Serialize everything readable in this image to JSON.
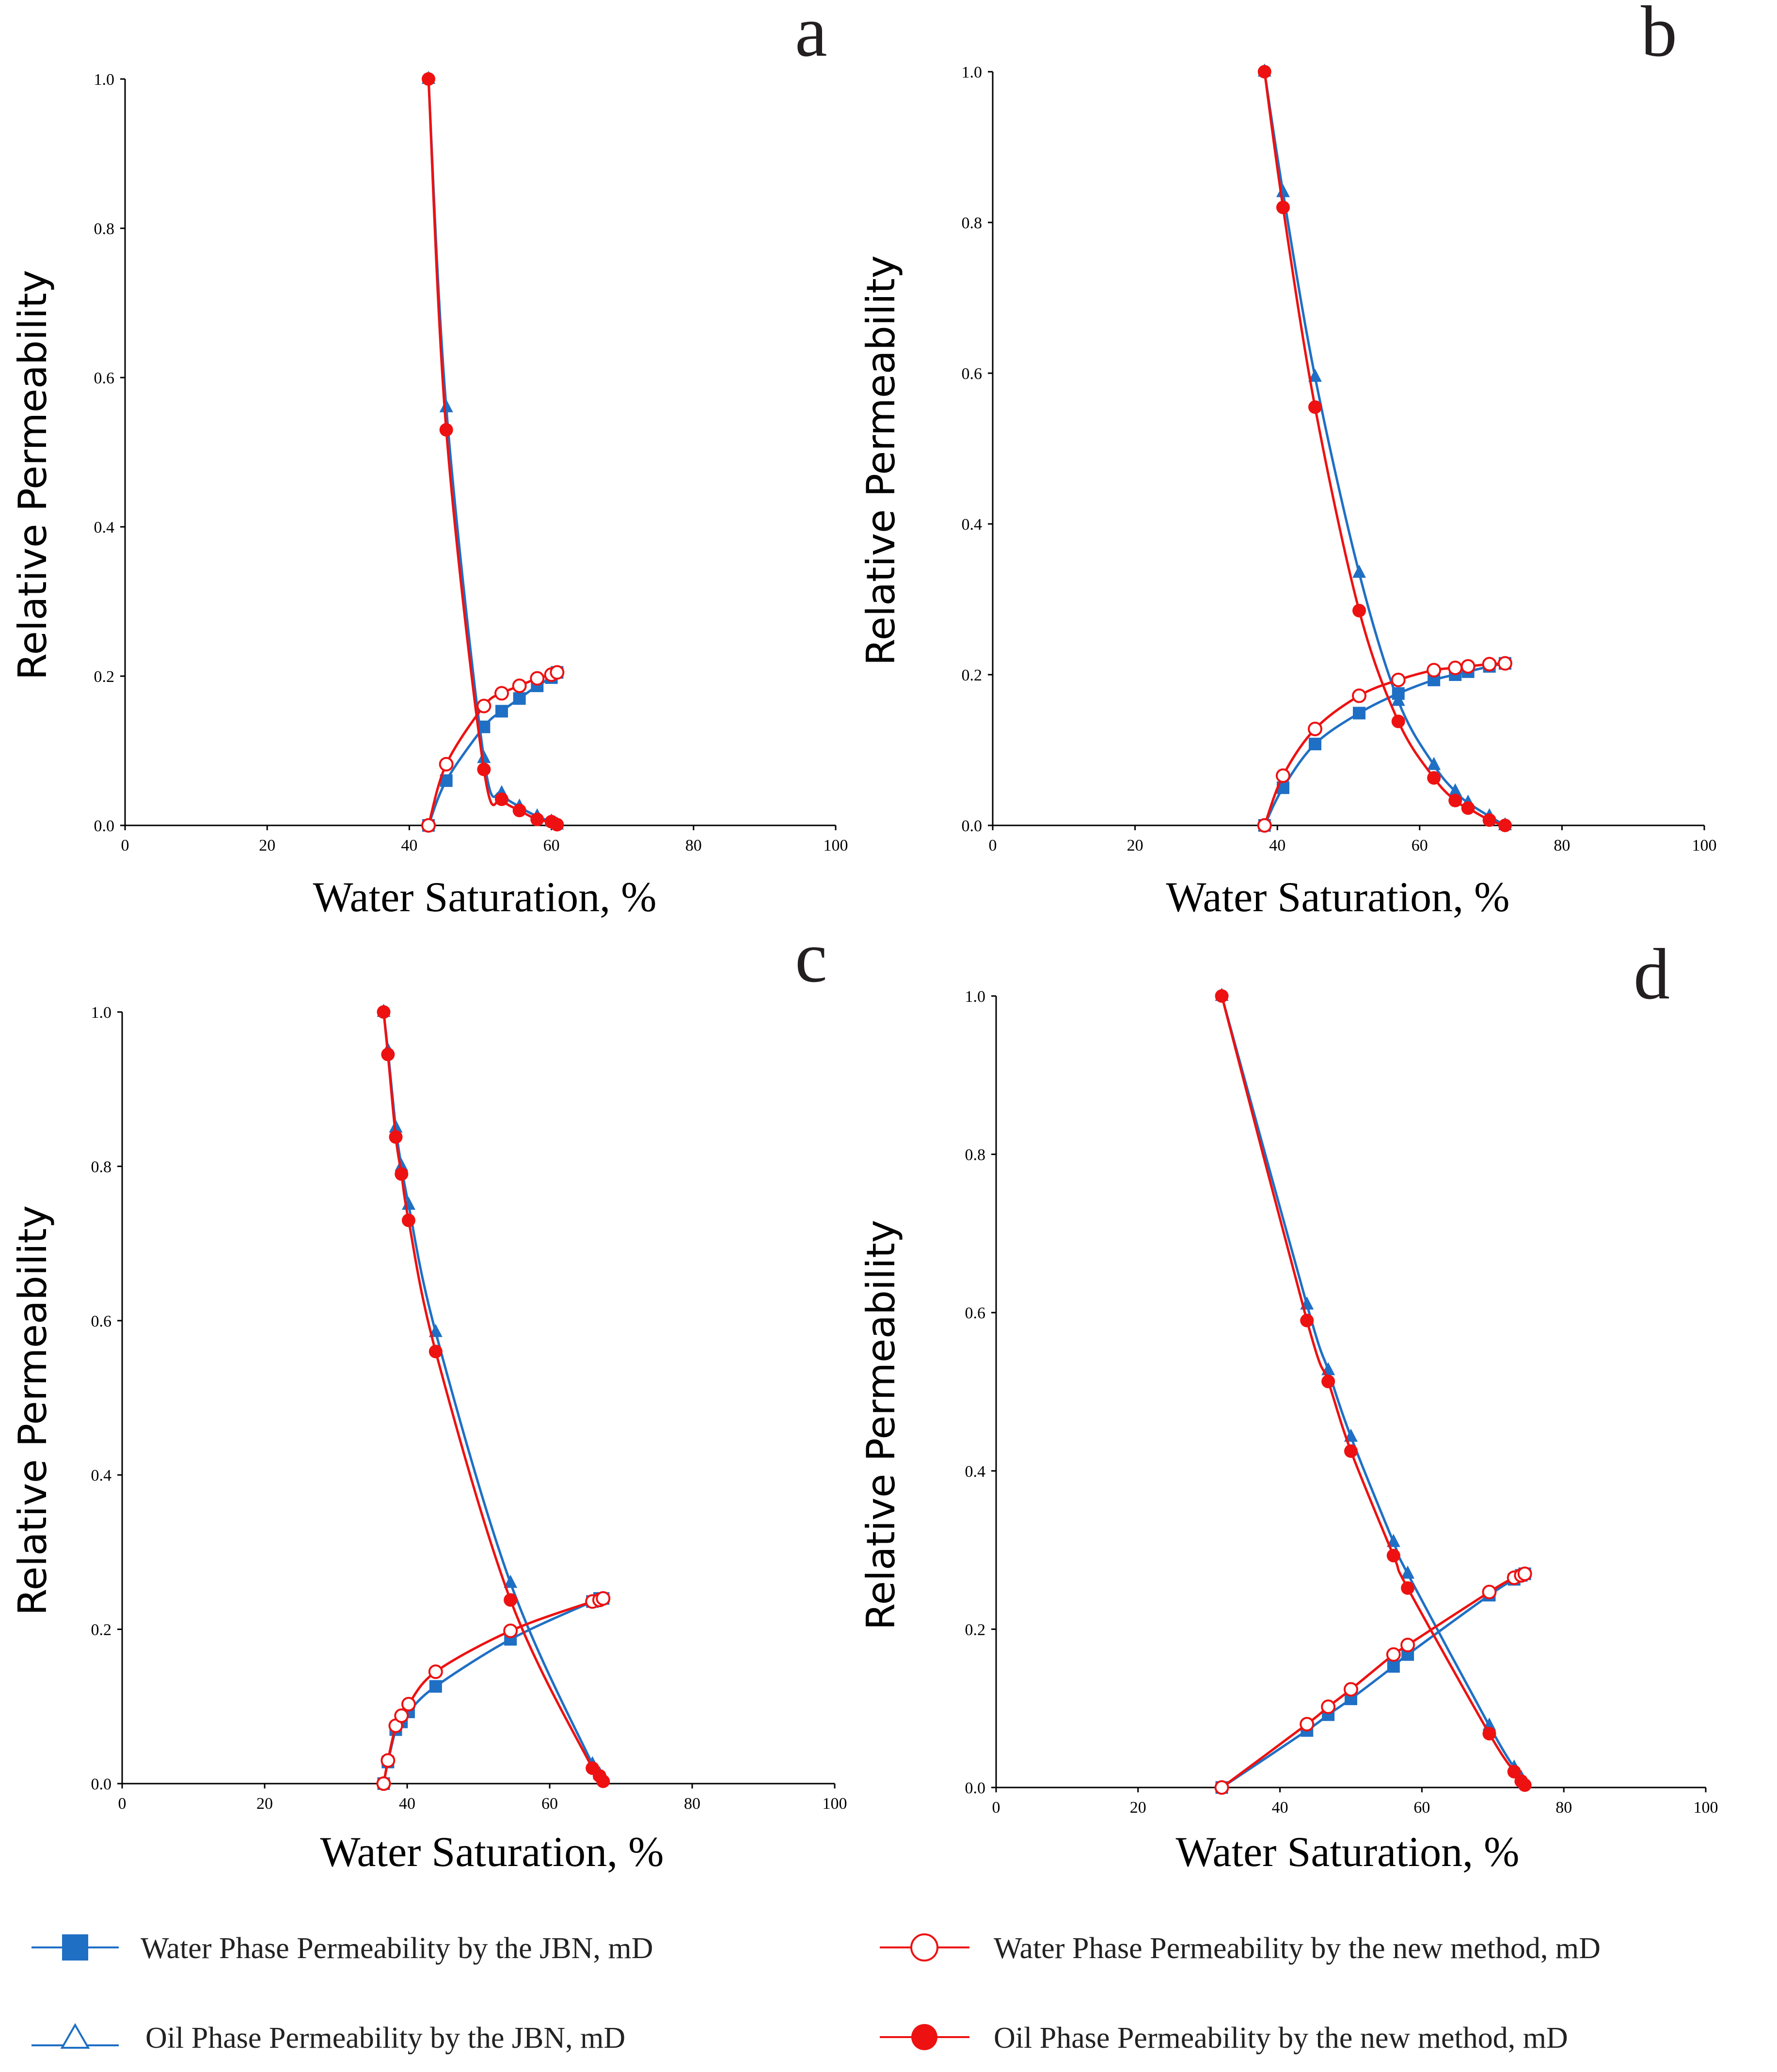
{
  "colors": {
    "jbn": "#1f6fc5",
    "new": "#ee1111"
  },
  "legend": [
    {
      "key": "water_jbn",
      "label": "Water Phase Permeability by the JBN, mD",
      "marker": "square",
      "color": "#1f6fc5"
    },
    {
      "key": "water_new",
      "label": "Water Phase Permeability by the new method, mD",
      "marker": "open-circle",
      "color": "#ee1111"
    },
    {
      "key": "oil_jbn",
      "label": "Oil Phase Permeability by the JBN, mD",
      "marker": "open-triangle",
      "color": "#1f6fc5"
    },
    {
      "key": "oil_new",
      "label": "Oil Phase Permeability by the new method, mD",
      "marker": "filled-circle",
      "color": "#ee1111"
    }
  ],
  "chart_data": [
    {
      "panel": "a",
      "type": "line",
      "xlabel": "Water Saturation, %",
      "ylabel": "Relative Permeability",
      "xlim": [
        0,
        100
      ],
      "ylim": [
        0,
        1.0
      ],
      "xticks": [
        "0",
        "20",
        "40",
        "60",
        "80",
        "100"
      ],
      "yticks": [
        "0.0",
        "0.2",
        "0.4",
        "0.6",
        "0.8",
        "1.0"
      ],
      "series": [
        {
          "name": "Water Phase Permeability by the JBN, mD",
          "key": "water_jbn",
          "x": [
            42.7,
            45.2,
            50.5,
            53.0,
            55.5,
            58.0,
            60.0,
            60.8
          ],
          "y": [
            0.0,
            0.06,
            0.132,
            0.153,
            0.17,
            0.187,
            0.198,
            0.205
          ]
        },
        {
          "name": "Water Phase Permeability by the new method, mD",
          "key": "water_new",
          "x": [
            42.7,
            45.2,
            50.5,
            53.0,
            55.5,
            58.0,
            60.0,
            60.8
          ],
          "y": [
            0.0,
            0.082,
            0.16,
            0.177,
            0.187,
            0.197,
            0.202,
            0.205
          ]
        },
        {
          "name": "Oil Phase Permeability by the JBN, mD",
          "key": "oil_jbn",
          "x": [
            42.7,
            45.2,
            50.5,
            53.0,
            55.5,
            58.0,
            60.0,
            60.8
          ],
          "y": [
            1.0,
            0.56,
            0.09,
            0.043,
            0.025,
            0.012,
            0.005,
            0.001
          ]
        },
        {
          "name": "Oil Phase Permeability by the new method, mD",
          "key": "oil_new",
          "x": [
            42.7,
            45.2,
            50.5,
            53.0,
            55.5,
            58.0,
            60.0,
            60.8
          ],
          "y": [
            1.0,
            0.53,
            0.075,
            0.035,
            0.02,
            0.008,
            0.005,
            0.001
          ]
        }
      ]
    },
    {
      "panel": "b",
      "type": "line",
      "xlabel": "Water Saturation, %",
      "ylabel": "Relative Permeability",
      "xlim": [
        0,
        100
      ],
      "ylim": [
        0,
        1.0
      ],
      "xticks": [
        "0",
        "20",
        "40",
        "60",
        "80",
        "100"
      ],
      "yticks": [
        "0.0",
        "0.2",
        "0.4",
        "0.6",
        "0.8",
        "1.0"
      ],
      "series": [
        {
          "name": "Water Phase Permeability by the JBN, mD",
          "key": "water_jbn",
          "x": [
            38.2,
            40.8,
            45.3,
            51.5,
            57.0,
            62.0,
            65.0,
            66.8,
            69.8,
            72.0
          ],
          "y": [
            0.0,
            0.05,
            0.108,
            0.149,
            0.175,
            0.193,
            0.2,
            0.204,
            0.211,
            0.215
          ]
        },
        {
          "name": "Water Phase Permeability by the new method, mD",
          "key": "water_new",
          "x": [
            38.2,
            40.8,
            45.3,
            51.5,
            57.0,
            62.0,
            65.0,
            66.8,
            69.8,
            72.0
          ],
          "y": [
            0.0,
            0.066,
            0.128,
            0.172,
            0.193,
            0.206,
            0.209,
            0.211,
            0.214,
            0.215
          ]
        },
        {
          "name": "Oil Phase Permeability by the JBN, mD",
          "key": "oil_jbn",
          "x": [
            38.2,
            40.8,
            45.3,
            51.5,
            57.0,
            62.0,
            65.0,
            66.8,
            69.8,
            72.0
          ],
          "y": [
            1.0,
            0.84,
            0.595,
            0.335,
            0.165,
            0.08,
            0.045,
            0.03,
            0.012,
            0.0
          ]
        },
        {
          "name": "Oil Phase Permeability by the new method, mD",
          "key": "oil_new",
          "x": [
            38.2,
            40.8,
            45.3,
            51.5,
            57.0,
            62.0,
            65.0,
            66.8,
            69.8,
            72.0
          ],
          "y": [
            1.0,
            0.82,
            0.555,
            0.285,
            0.138,
            0.063,
            0.033,
            0.023,
            0.007,
            0.0
          ]
        }
      ]
    },
    {
      "panel": "c",
      "type": "line",
      "xlabel": "Water Saturation, %",
      "ylabel": "Relative Permeability",
      "xlim": [
        0,
        100
      ],
      "ylim": [
        0,
        1.0
      ],
      "xticks": [
        "0",
        "20",
        "40",
        "60",
        "80",
        "100"
      ],
      "yticks": [
        "0.0",
        "0.2",
        "0.4",
        "0.6",
        "0.8",
        "1.0"
      ],
      "series": [
        {
          "name": "Water Phase Permeability by the JBN, mD",
          "key": "water_jbn",
          "x": [
            36.7,
            37.3,
            38.4,
            39.2,
            40.2,
            44.0,
            54.5,
            66.0,
            67.0,
            67.5
          ],
          "y": [
            0.0,
            0.028,
            0.07,
            0.08,
            0.093,
            0.126,
            0.187,
            0.236,
            0.24,
            0.24
          ]
        },
        {
          "name": "Water Phase Permeability by the new method, mD",
          "key": "water_new",
          "x": [
            36.7,
            37.3,
            38.4,
            39.2,
            40.2,
            44.0,
            54.5,
            66.0,
            67.0,
            67.5
          ],
          "y": [
            0.0,
            0.03,
            0.075,
            0.088,
            0.103,
            0.145,
            0.198,
            0.236,
            0.238,
            0.24
          ]
        },
        {
          "name": "Oil Phase Permeability by the JBN, mD",
          "key": "oil_jbn",
          "x": [
            36.7,
            37.3,
            38.4,
            39.2,
            40.2,
            44.0,
            54.5,
            66.0,
            67.0,
            67.5
          ],
          "y": [
            1.0,
            0.95,
            0.85,
            0.8,
            0.75,
            0.585,
            0.26,
            0.025,
            0.012,
            0.005
          ]
        },
        {
          "name": "Oil Phase Permeability by the new method, mD",
          "key": "oil_new",
          "x": [
            36.7,
            37.3,
            38.4,
            39.2,
            40.2,
            44.0,
            54.5,
            66.0,
            67.0,
            67.5
          ],
          "y": [
            1.0,
            0.945,
            0.838,
            0.79,
            0.73,
            0.56,
            0.238,
            0.02,
            0.01,
            0.003
          ]
        }
      ]
    },
    {
      "panel": "d",
      "type": "line",
      "xlabel": "Water Saturation, %",
      "ylabel": "Relative Permeability",
      "xlim": [
        0,
        100
      ],
      "ylim": [
        0,
        1.0
      ],
      "xticks": [
        "0",
        "20",
        "40",
        "60",
        "80",
        "100"
      ],
      "yticks": [
        "0.0",
        "0.2",
        "0.4",
        "0.6",
        "0.8",
        "1.0"
      ],
      "series": [
        {
          "name": "Water Phase Permeability by the JBN, mD",
          "key": "water_jbn",
          "x": [
            31.8,
            43.8,
            46.8,
            50.0,
            56.0,
            58.0,
            69.5,
            73.0,
            74.0,
            74.5
          ],
          "y": [
            0.0,
            0.072,
            0.092,
            0.112,
            0.153,
            0.168,
            0.243,
            0.263,
            0.268,
            0.27
          ]
        },
        {
          "name": "Water Phase Permeability by the new method, mD",
          "key": "water_new",
          "x": [
            31.8,
            43.8,
            46.8,
            50.0,
            56.0,
            58.0,
            69.5,
            73.0,
            74.0,
            74.5
          ],
          "y": [
            0.0,
            0.08,
            0.102,
            0.124,
            0.168,
            0.18,
            0.247,
            0.265,
            0.268,
            0.27
          ]
        },
        {
          "name": "Oil Phase Permeability by the JBN, mD",
          "key": "oil_jbn",
          "x": [
            31.8,
            43.8,
            46.8,
            50.0,
            56.0,
            58.0,
            69.5,
            73.0,
            74.0,
            74.5
          ],
          "y": [
            1.0,
            0.61,
            0.527,
            0.443,
            0.31,
            0.27,
            0.078,
            0.025,
            0.012,
            0.005
          ]
        },
        {
          "name": "Oil Phase Permeability by the new method, mD",
          "key": "oil_new",
          "x": [
            31.8,
            43.8,
            46.8,
            50.0,
            56.0,
            58.0,
            69.5,
            73.0,
            74.0,
            74.5
          ],
          "y": [
            1.0,
            0.59,
            0.513,
            0.425,
            0.293,
            0.252,
            0.068,
            0.02,
            0.008,
            0.003
          ]
        }
      ]
    }
  ]
}
